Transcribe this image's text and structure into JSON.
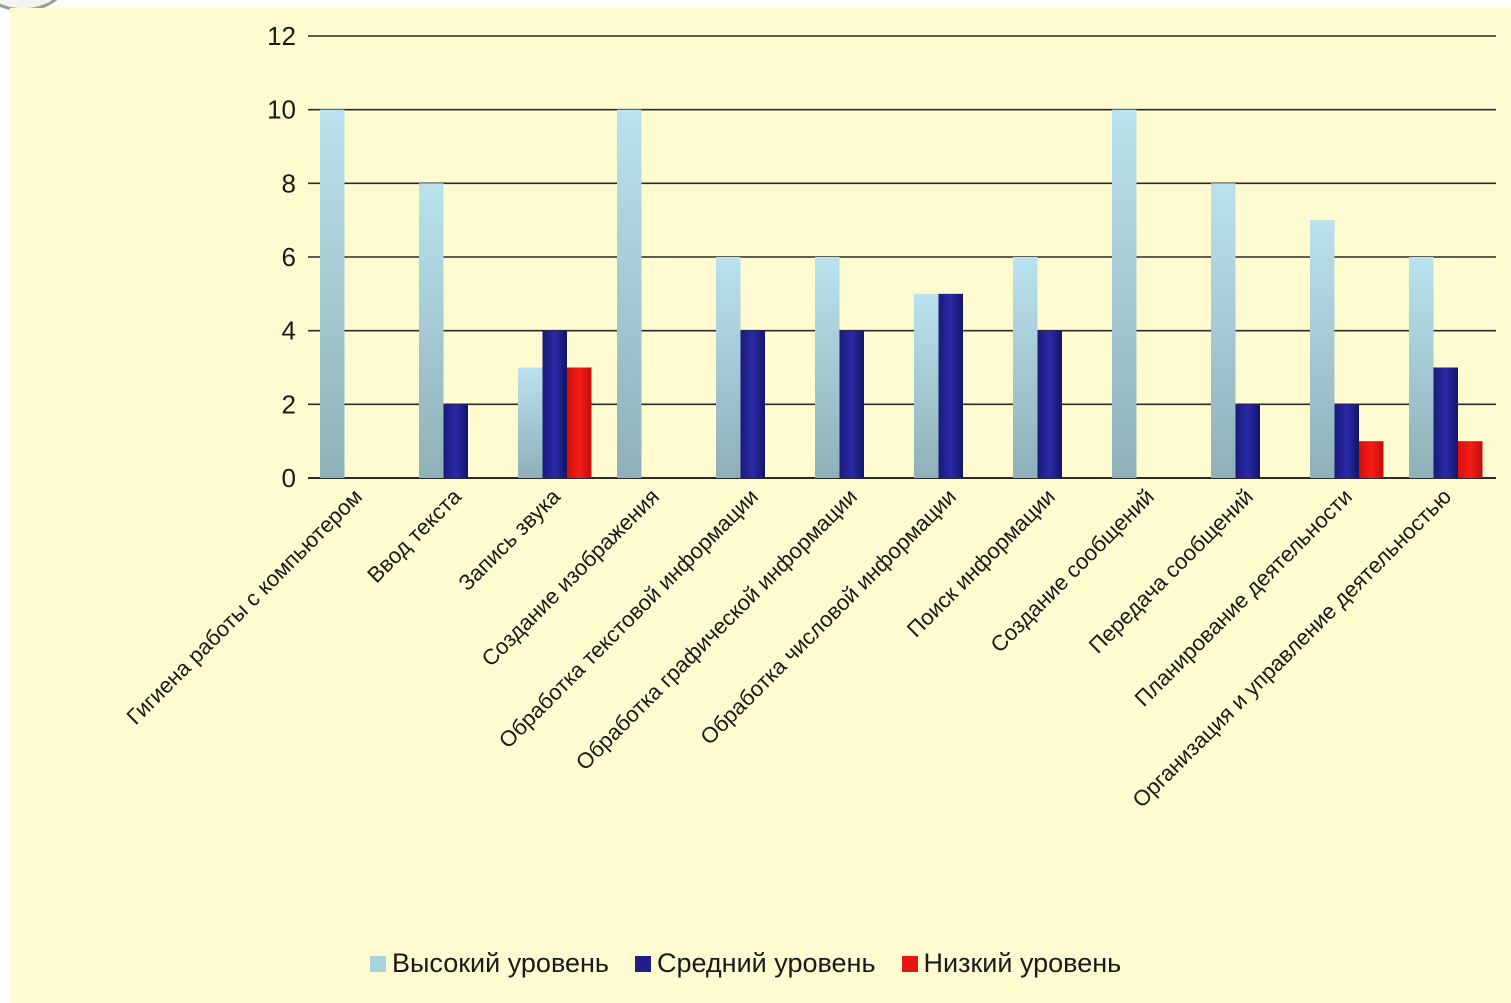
{
  "chart_data": {
    "type": "bar",
    "title": "",
    "xlabel": "",
    "ylabel": "",
    "ylim": [
      0,
      12
    ],
    "yticks": [
      0,
      2,
      4,
      6,
      8,
      10,
      12
    ],
    "grid": true,
    "legend_position": "bottom",
    "categories": [
      "Гигиена работы с компьютером",
      "Ввод текста",
      "Запись звука",
      "Создание изображения",
      "Обработка текстовой информации",
      "Обработка графической информации",
      "Обработка числовой информации",
      "Поиск информации",
      "Создание сообщений",
      "Передача сообщений",
      "Планирование деятельности",
      "Организация и управление деятельностью"
    ],
    "series": [
      {
        "name": "Высокий уровень",
        "color": "#a9d3de",
        "values": [
          10,
          8,
          3,
          10,
          6,
          6,
          5,
          6,
          10,
          8,
          7,
          6
        ]
      },
      {
        "name": "Средний уровень",
        "color": "#1e1e8c",
        "values": [
          0,
          2,
          4,
          0,
          4,
          4,
          5,
          4,
          0,
          2,
          2,
          3
        ]
      },
      {
        "name": "Низкий уровень",
        "color": "#e8140f",
        "values": [
          0,
          0,
          3,
          0,
          0,
          0,
          0,
          0,
          0,
          0,
          1,
          1
        ]
      }
    ]
  }
}
